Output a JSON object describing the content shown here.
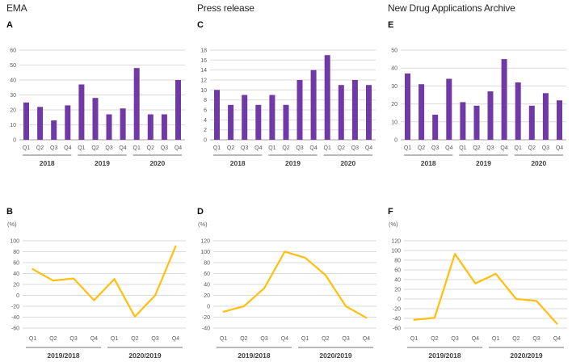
{
  "figure": {
    "column_titles": [
      "EMA",
      "Press release",
      "New Drug Applications Archive"
    ]
  },
  "colors": {
    "bar": "#7139a6",
    "line": "#ffc011",
    "gridline": "#dadada",
    "axis": "#a6a6a6",
    "tick_label": "#595959",
    "group_line": "#737373",
    "group_label": "#404040"
  },
  "chart_data": [
    {
      "panel": "A",
      "source": "EMA",
      "type": "bar",
      "categories": [
        "Q1",
        "Q2",
        "Q3",
        "Q4",
        "Q1",
        "Q2",
        "Q3",
        "Q4",
        "Q1",
        "Q2",
        "Q3",
        "Q4"
      ],
      "groups": [
        {
          "label": "2018",
          "span": 4
        },
        {
          "label": "2019",
          "span": 4
        },
        {
          "label": "2020",
          "span": 4
        }
      ],
      "values": [
        25,
        22,
        13,
        23,
        37,
        28,
        17,
        21,
        48,
        17,
        17,
        40
      ],
      "yticks": [
        0,
        10,
        20,
        30,
        40,
        50,
        60
      ],
      "ylim": [
        0,
        60
      ],
      "ylabel": ""
    },
    {
      "panel": "B",
      "source": "EMA",
      "type": "line",
      "categories": [
        "Q1",
        "Q2",
        "Q3",
        "Q4",
        "Q1",
        "Q2",
        "Q3",
        "Q4"
      ],
      "groups": [
        {
          "label": "2019/2018",
          "span": 4
        },
        {
          "label": "2020/2019",
          "span": 4
        }
      ],
      "values": [
        48,
        27,
        31,
        -9,
        30,
        -39,
        0,
        90
      ],
      "yticks": [
        -60,
        -40,
        -20,
        0,
        20,
        40,
        60,
        80,
        100
      ],
      "ylim": [
        -60,
        100
      ],
      "ylabel": "(%)"
    },
    {
      "panel": "C",
      "source": "Press release",
      "type": "bar",
      "categories": [
        "Q1",
        "Q2",
        "Q3",
        "Q4",
        "Q1",
        "Q2",
        "Q3",
        "Q4",
        "Q1",
        "Q2",
        "Q3",
        "Q4"
      ],
      "groups": [
        {
          "label": "2018",
          "span": 4
        },
        {
          "label": "2019",
          "span": 4
        },
        {
          "label": "2020",
          "span": 4
        }
      ],
      "values": [
        10,
        7,
        9,
        7,
        9,
        7,
        12,
        14,
        17,
        11,
        12,
        11
      ],
      "yticks": [
        0,
        2,
        4,
        6,
        8,
        10,
        12,
        14,
        16,
        18
      ],
      "ylim": [
        0,
        18
      ],
      "ylabel": ""
    },
    {
      "panel": "D",
      "source": "Press release",
      "type": "line",
      "categories": [
        "Q1",
        "Q2",
        "Q3",
        "Q4",
        "Q1",
        "Q2",
        "Q3",
        "Q4"
      ],
      "groups": [
        {
          "label": "2019/2018",
          "span": 4
        },
        {
          "label": "2020/2019",
          "span": 4
        }
      ],
      "values": [
        -10,
        0,
        33,
        100,
        89,
        57,
        0,
        -21
      ],
      "yticks": [
        -40,
        -20,
        0,
        20,
        40,
        60,
        80,
        100,
        120
      ],
      "ylim": [
        -40,
        120
      ],
      "ylabel": "(%)"
    },
    {
      "panel": "E",
      "source": "New Drug Applications Archive",
      "type": "bar",
      "categories": [
        "Q1",
        "Q2",
        "Q3",
        "Q4",
        "Q1",
        "Q2",
        "Q3",
        "Q4",
        "Q1",
        "Q2",
        "Q3",
        "Q4"
      ],
      "groups": [
        {
          "label": "2018",
          "span": 4
        },
        {
          "label": "2019",
          "span": 4
        },
        {
          "label": "2020",
          "span": 4
        }
      ],
      "values": [
        37,
        31,
        14,
        34,
        21,
        19,
        27,
        45,
        32,
        19,
        26,
        22
      ],
      "yticks": [
        0,
        10,
        20,
        30,
        40,
        50
      ],
      "ylim": [
        0,
        50
      ],
      "ylabel": ""
    },
    {
      "panel": "F",
      "source": "New Drug Applications Archive",
      "type": "line",
      "categories": [
        "Q1",
        "Q2",
        "Q3",
        "Q4",
        "Q1",
        "Q2",
        "Q3",
        "Q4"
      ],
      "groups": [
        {
          "label": "2019/2018",
          "span": 4
        },
        {
          "label": "2020/2019",
          "span": 4
        }
      ],
      "values": [
        -43,
        -39,
        93,
        32,
        52,
        0,
        -4,
        -51
      ],
      "yticks": [
        -60,
        -40,
        -20,
        0,
        20,
        40,
        60,
        80,
        100,
        120
      ],
      "ylim": [
        -60,
        120
      ],
      "ylabel": "(%)"
    }
  ]
}
